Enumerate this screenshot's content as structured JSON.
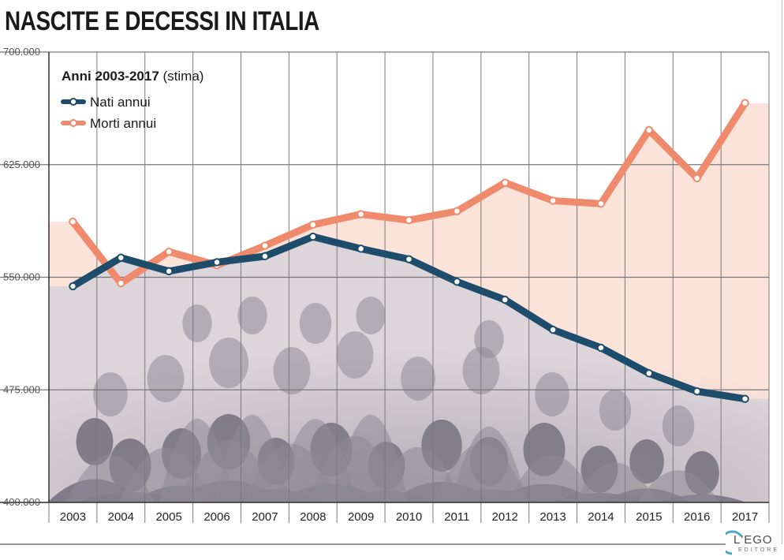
{
  "title": "NASCITE E DECESSI IN ITALIA",
  "chart_data": {
    "type": "line",
    "categories": [
      "2003",
      "2004",
      "2005",
      "2006",
      "2007",
      "2008",
      "2009",
      "2010",
      "2011",
      "2012",
      "2013",
      "2014",
      "2015",
      "2016",
      "2017"
    ],
    "series": [
      {
        "name": "Nati annui",
        "color": "#1e4d6b",
        "values": [
          544000,
          563000,
          554000,
          560000,
          564000,
          577000,
          569000,
          562000,
          547000,
          535000,
          515000,
          503000,
          486000,
          474000,
          469000
        ]
      },
      {
        "name": "Morti annui",
        "color": "#f08a6c",
        "values": [
          587000,
          546000,
          567000,
          558000,
          571000,
          585000,
          592000,
          588000,
          594000,
          613000,
          601000,
          599000,
          648000,
          616000,
          666000
        ]
      }
    ],
    "legend_title": "Anni 2003-2017",
    "legend_note": "(stima)",
    "y_ticks": [
      "700.000",
      "625.000",
      "550.000",
      "475.000",
      "400.000"
    ],
    "ylim": [
      400000,
      700000
    ],
    "grid": true,
    "legend_position": "top-left"
  },
  "publisher": {
    "name": "L'EGO",
    "sub": "EDITORE"
  }
}
